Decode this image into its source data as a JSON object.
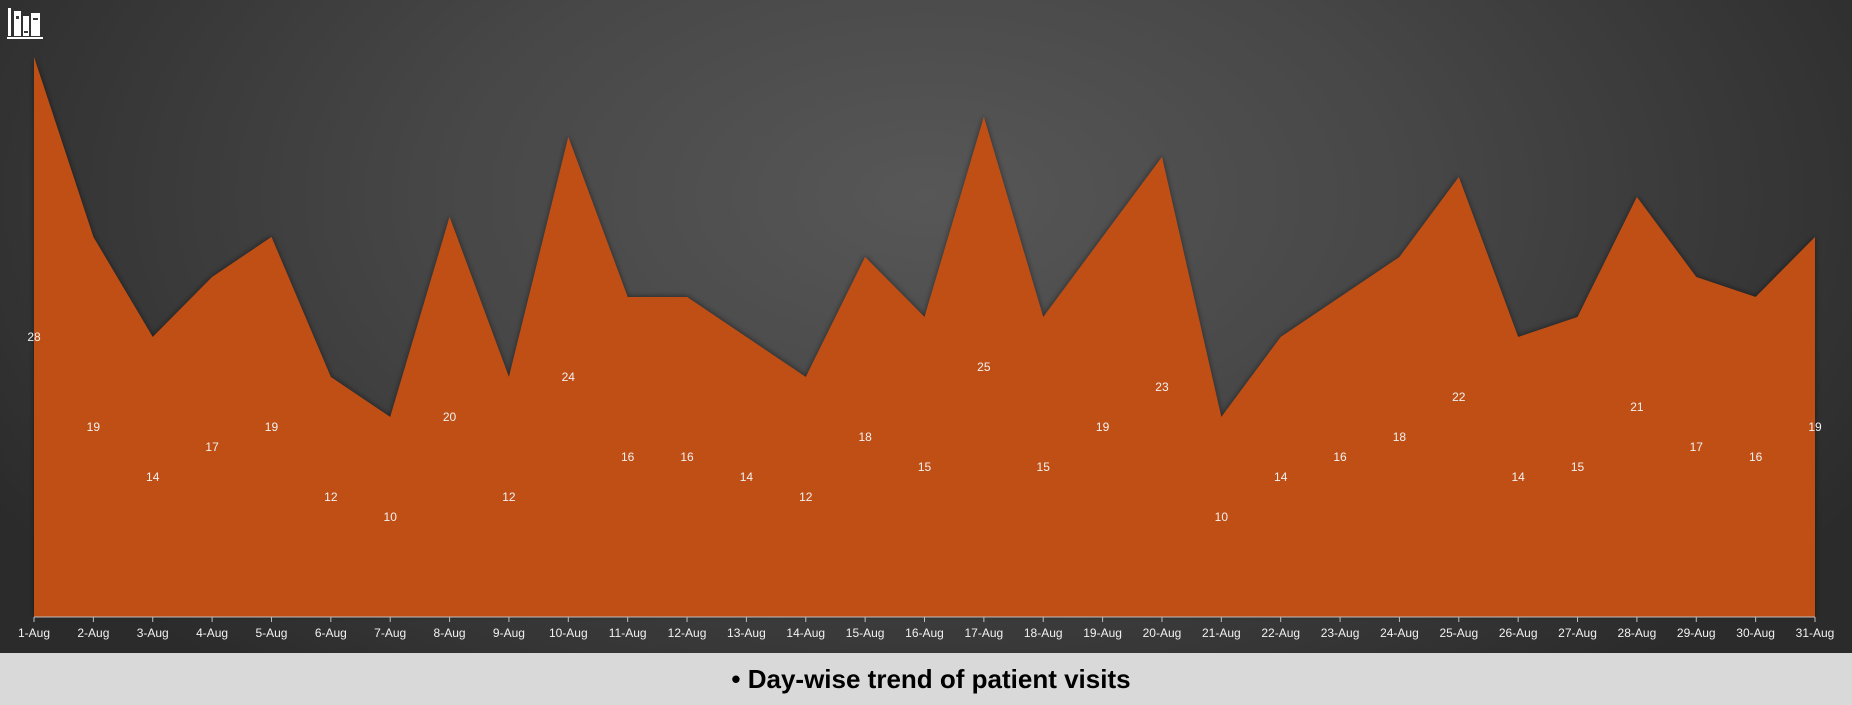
{
  "caption": "• Day-wise trend of patient visits",
  "colors": {
    "area_fill": "#c05014",
    "axis_line": "#bfbfbf",
    "label_text": "#f2f2f2",
    "caption_bg": "#d9d9d9"
  },
  "icons": {
    "logo": "books-icon"
  },
  "chart_data": {
    "type": "area",
    "categories": [
      "1-Aug",
      "2-Aug",
      "3-Aug",
      "4-Aug",
      "5-Aug",
      "6-Aug",
      "7-Aug",
      "8-Aug",
      "9-Aug",
      "10-Aug",
      "11-Aug",
      "12-Aug",
      "13-Aug",
      "14-Aug",
      "15-Aug",
      "16-Aug",
      "17-Aug",
      "18-Aug",
      "19-Aug",
      "20-Aug",
      "21-Aug",
      "22-Aug",
      "23-Aug",
      "24-Aug",
      "25-Aug",
      "26-Aug",
      "27-Aug",
      "28-Aug",
      "29-Aug",
      "30-Aug",
      "31-Aug"
    ],
    "series": [
      {
        "values": [
          28,
          19,
          14,
          17,
          19,
          12,
          10,
          20,
          12,
          24,
          16,
          16,
          14,
          12,
          18,
          15,
          25,
          15,
          19,
          23,
          10,
          14,
          16,
          18,
          22,
          14,
          15,
          21,
          17,
          16,
          19
        ]
      }
    ],
    "ylim": [
      0,
      28
    ],
    "data_labels": true,
    "y_axis_visible": false,
    "grid": false,
    "legend": "none"
  }
}
